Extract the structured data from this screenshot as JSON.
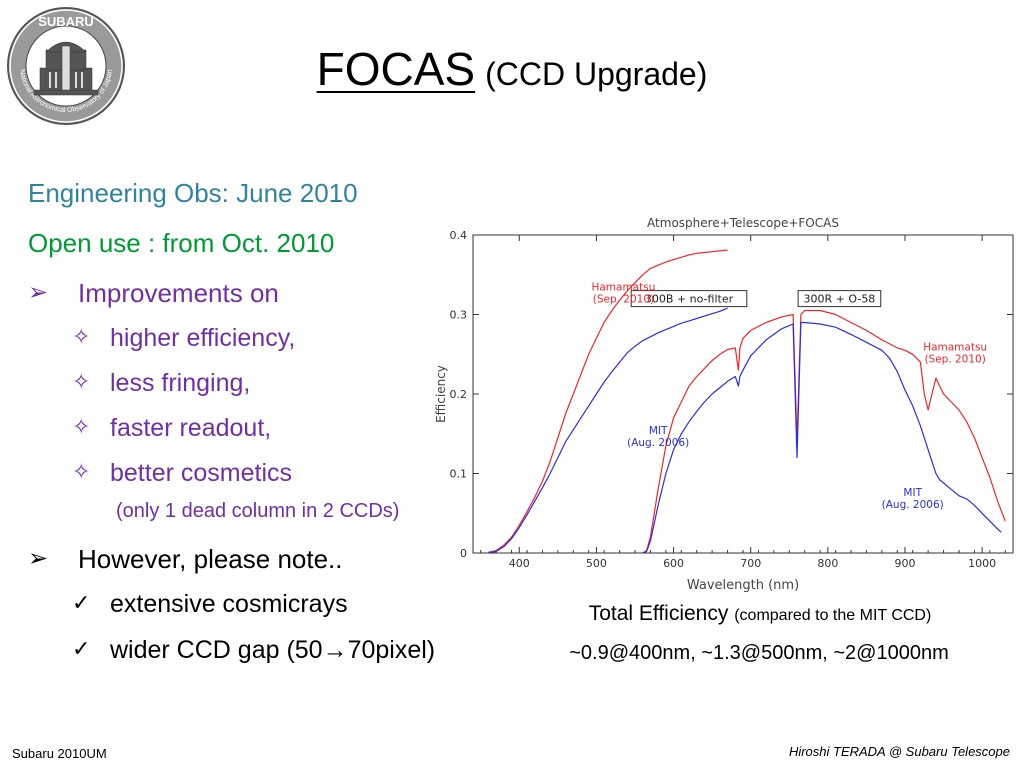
{
  "logo": {
    "name": "SUBARU",
    "ring_text": "National Astronomical Observatory of Japan"
  },
  "title": {
    "main": "FOCAS",
    "sub": "(CCD Upgrade)"
  },
  "bullets": [
    {
      "text": "Engineering Obs: June 2010",
      "level": 0,
      "marker": "",
      "color": "#31849b"
    },
    {
      "text": "Open use : from Oct. 2010",
      "level": 0,
      "marker": "",
      "color": "#009933"
    },
    {
      "text": "Improvements on",
      "level": 0,
      "marker": "➢",
      "color": "#7030a0"
    },
    {
      "text": "higher efficiency,",
      "level": 1,
      "marker": "✧",
      "color": "#7030a0"
    },
    {
      "text": "less fringing,",
      "level": 1,
      "marker": "✧",
      "color": "#7030a0"
    },
    {
      "text": "faster readout,",
      "level": 1,
      "marker": "✧",
      "color": "#7030a0"
    },
    {
      "text": "better cosmetics",
      "level": 1,
      "marker": "✧",
      "color": "#7030a0"
    },
    {
      "text": "(only 1 dead column in 2 CCDs)",
      "level": 2,
      "marker": "",
      "color": "#7030a0"
    },
    {
      "text": "However, please note..",
      "level": 0,
      "marker": "➢",
      "color": "#000000"
    },
    {
      "text": "extensive cosmicrays",
      "level": 1,
      "marker": "✓",
      "color": "#000000"
    },
    {
      "text": "wider CCD gap (50→70pixel)",
      "level": 1,
      "marker": "✓",
      "color": "#000000"
    }
  ],
  "chart_data": {
    "type": "line",
    "title": "Atmosphere+Telescope+FOCAS",
    "xlabel": "Wavelength (nm)",
    "ylabel": "Efficiency",
    "xlim": [
      340,
      1040
    ],
    "ylim": [
      0,
      0.4
    ],
    "xticks": [
      400,
      500,
      600,
      700,
      800,
      900,
      1000
    ],
    "yticks": [
      0,
      0.1,
      0.2,
      0.3,
      0.4
    ],
    "ytick_labels": [
      "0",
      "0.1",
      "0.2",
      "0.3",
      "0.4"
    ],
    "colors": {
      "hamamatsu": "#e8282b",
      "mit": "#2b2fd6"
    },
    "boxes": [
      {
        "text": "300B + no-filter",
        "x": 620,
        "y": 0.32
      },
      {
        "text": "300R + O-58",
        "x": 815,
        "y": 0.32
      }
    ],
    "annotations": [
      {
        "lines": [
          "Hamamatsu",
          "(Sep. 2010)"
        ],
        "x": 535,
        "y": 0.33,
        "color": "#e8282b"
      },
      {
        "lines": [
          "Hamamatsu",
          "(Sep. 2010)"
        ],
        "x": 965,
        "y": 0.255,
        "color": "#e8282b"
      },
      {
        "lines": [
          "MIT",
          "(Aug. 2006)"
        ],
        "x": 580,
        "y": 0.15,
        "color": "#2b2fd6"
      },
      {
        "lines": [
          "MIT",
          "(Aug. 2006)"
        ],
        "x": 910,
        "y": 0.072,
        "color": "#2b2fd6"
      }
    ],
    "series": [
      {
        "group": "hamamatsu",
        "setting": "300B + no-filter",
        "x": [
          360,
          370,
          380,
          390,
          400,
          410,
          420,
          430,
          440,
          450,
          460,
          470,
          480,
          490,
          500,
          510,
          520,
          530,
          540,
          550,
          560,
          570,
          580,
          590,
          600,
          610,
          620,
          630,
          640,
          650,
          660,
          670
        ],
        "y": [
          0.001,
          0.003,
          0.01,
          0.02,
          0.035,
          0.052,
          0.07,
          0.09,
          0.115,
          0.145,
          0.175,
          0.2,
          0.225,
          0.25,
          0.27,
          0.29,
          0.305,
          0.318,
          0.33,
          0.34,
          0.35,
          0.358,
          0.362,
          0.366,
          0.369,
          0.372,
          0.375,
          0.377,
          0.378,
          0.379,
          0.38,
          0.381
        ]
      },
      {
        "group": "mit",
        "setting": "300B + no-filter",
        "x": [
          360,
          370,
          380,
          390,
          400,
          410,
          420,
          430,
          440,
          450,
          460,
          470,
          480,
          490,
          500,
          510,
          520,
          530,
          540,
          550,
          560,
          570,
          580,
          590,
          600,
          610,
          620,
          630,
          640,
          650,
          660,
          670
        ],
        "y": [
          0.0,
          0.002,
          0.008,
          0.018,
          0.032,
          0.048,
          0.065,
          0.082,
          0.1,
          0.12,
          0.14,
          0.155,
          0.17,
          0.185,
          0.2,
          0.215,
          0.228,
          0.24,
          0.252,
          0.26,
          0.267,
          0.272,
          0.277,
          0.281,
          0.285,
          0.289,
          0.292,
          0.295,
          0.298,
          0.301,
          0.304,
          0.308
        ]
      },
      {
        "group": "hamamatsu",
        "setting": "300R + O-58",
        "x": [
          560,
          565,
          570,
          580,
          590,
          600,
          610,
          620,
          630,
          640,
          650,
          660,
          670,
          680,
          684,
          686,
          690,
          700,
          720,
          740,
          755,
          760,
          765,
          770,
          790,
          810,
          830,
          850,
          870,
          880,
          890,
          900,
          910,
          920,
          925,
          930,
          935,
          940,
          945,
          950,
          960,
          970,
          980,
          990,
          1000,
          1010,
          1020,
          1030
        ],
        "y": [
          0,
          0.003,
          0.02,
          0.08,
          0.135,
          0.17,
          0.19,
          0.21,
          0.222,
          0.232,
          0.242,
          0.25,
          0.256,
          0.258,
          0.23,
          0.258,
          0.27,
          0.28,
          0.29,
          0.297,
          0.3,
          0.14,
          0.3,
          0.305,
          0.305,
          0.3,
          0.29,
          0.28,
          0.268,
          0.263,
          0.258,
          0.255,
          0.25,
          0.24,
          0.2,
          0.18,
          0.2,
          0.22,
          0.21,
          0.2,
          0.19,
          0.18,
          0.165,
          0.145,
          0.12,
          0.095,
          0.065,
          0.04
        ]
      },
      {
        "group": "mit",
        "setting": "300R + O-58",
        "x": [
          560,
          565,
          570,
          580,
          590,
          600,
          610,
          620,
          630,
          640,
          650,
          660,
          670,
          680,
          684,
          686,
          690,
          700,
          720,
          740,
          755,
          760,
          765,
          770,
          790,
          810,
          830,
          850,
          870,
          880,
          890,
          900,
          910,
          920,
          930,
          935,
          940,
          945,
          950,
          960,
          970,
          980,
          990,
          1000,
          1010,
          1020,
          1025
        ],
        "y": [
          0,
          0.002,
          0.015,
          0.06,
          0.1,
          0.13,
          0.15,
          0.165,
          0.178,
          0.19,
          0.2,
          0.208,
          0.216,
          0.222,
          0.21,
          0.222,
          0.23,
          0.248,
          0.268,
          0.282,
          0.288,
          0.12,
          0.29,
          0.29,
          0.288,
          0.284,
          0.275,
          0.265,
          0.255,
          0.245,
          0.228,
          0.205,
          0.185,
          0.16,
          0.13,
          0.115,
          0.1,
          0.092,
          0.088,
          0.08,
          0.072,
          0.068,
          0.06,
          0.05,
          0.04,
          0.03,
          0.026
        ]
      }
    ]
  },
  "caption": {
    "line1_main": "Total Efficiency",
    "line1_small": "(compared to the MIT CCD)",
    "line2": "~0.9@400nm, ~1.3@500nm, ~2@1000nm"
  },
  "footer": {
    "left": "Subaru 2010UM",
    "right": "Hiroshi TERADA @ Subaru Telescope"
  }
}
